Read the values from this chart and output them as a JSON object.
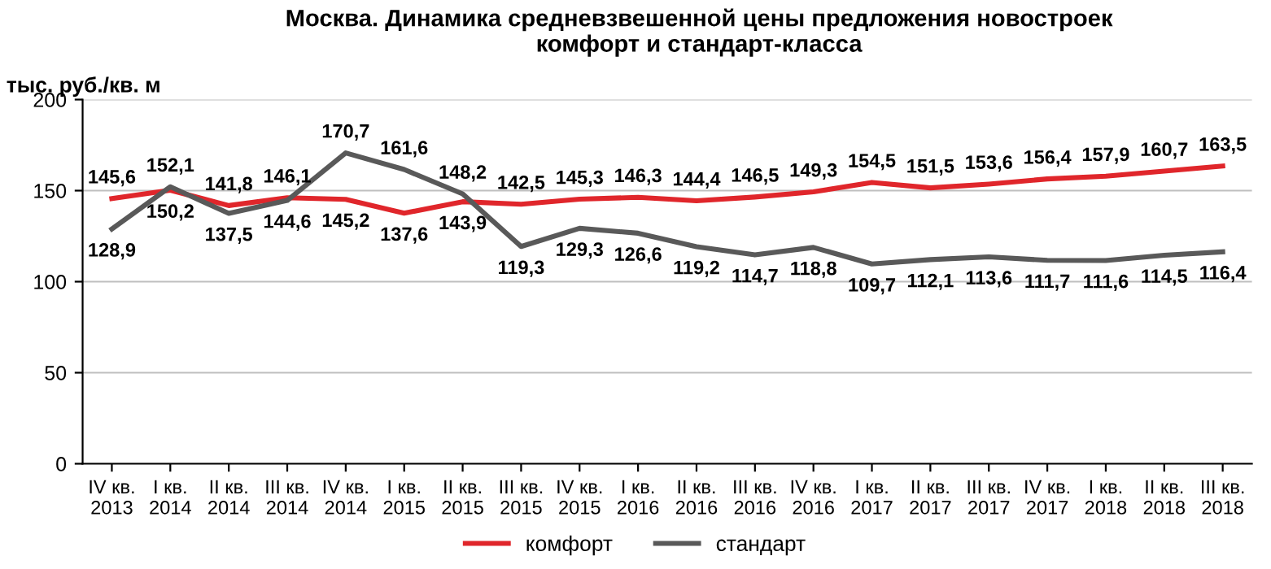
{
  "chart_data": {
    "type": "line",
    "title": "Москва. Динамика средневзвешенной цены предложения новостроек\nкомфорт и стандарт-класса",
    "ylabel": "тыс. руб./кв. м",
    "categories": [
      "IV кв.\n2013",
      "I кв.\n2014",
      "II кв.\n2014",
      "III кв.\n2014",
      "IV кв.\n2014",
      "I кв.\n2015",
      "II кв.\n2015",
      "III кв.\n2015",
      "IV кв.\n2015",
      "I кв.\n2016",
      "II кв.\n2016",
      "III кв.\n2016",
      "IV кв.\n2016",
      "I кв.\n2017",
      "II кв.\n2017",
      "III кв.\n2017",
      "IV кв.\n2017",
      "I кв.\n2018",
      "II кв.\n2018",
      "III кв.\n2018"
    ],
    "series": [
      {
        "name": "комфорт",
        "color": "#e0262b",
        "values": [
          145.6,
          150.2,
          141.8,
          146.1,
          145.2,
          137.6,
          143.9,
          142.5,
          145.3,
          146.3,
          144.4,
          146.5,
          149.3,
          154.5,
          151.5,
          153.6,
          156.4,
          157.9,
          160.7,
          163.5
        ],
        "value_labels": [
          "145,6",
          "150,2",
          "141,8",
          "146,1",
          "145,2",
          "137,6",
          "143,9",
          "142,5",
          "145,3",
          "146,3",
          "144,4",
          "146,5",
          "149,3",
          "154,5",
          "151,5",
          "153,6",
          "156,4",
          "157,9",
          "160,7",
          "163,5"
        ]
      },
      {
        "name": "стандарт",
        "color": "#595959",
        "values": [
          128.9,
          152.1,
          137.5,
          144.6,
          170.7,
          161.6,
          148.2,
          119.3,
          129.3,
          126.6,
          119.2,
          114.7,
          118.8,
          109.7,
          112.1,
          113.6,
          111.7,
          111.6,
          114.5,
          116.4
        ],
        "value_labels": [
          "128,9",
          "152,1",
          "137,5",
          "144,6",
          "170,7",
          "161,6",
          "148,2",
          "119,3",
          "129,3",
          "126,6",
          "119,2",
          "114,7",
          "118,8",
          "109,7",
          "112,1",
          "113,6",
          "111,7",
          "111,6",
          "114,5",
          "116,4"
        ]
      }
    ],
    "ylim": [
      0,
      200
    ],
    "yticks": [
      0,
      50,
      100,
      150,
      200
    ],
    "grid": "y",
    "legend": "bottom",
    "marker": "none",
    "line_style": "solid"
  }
}
